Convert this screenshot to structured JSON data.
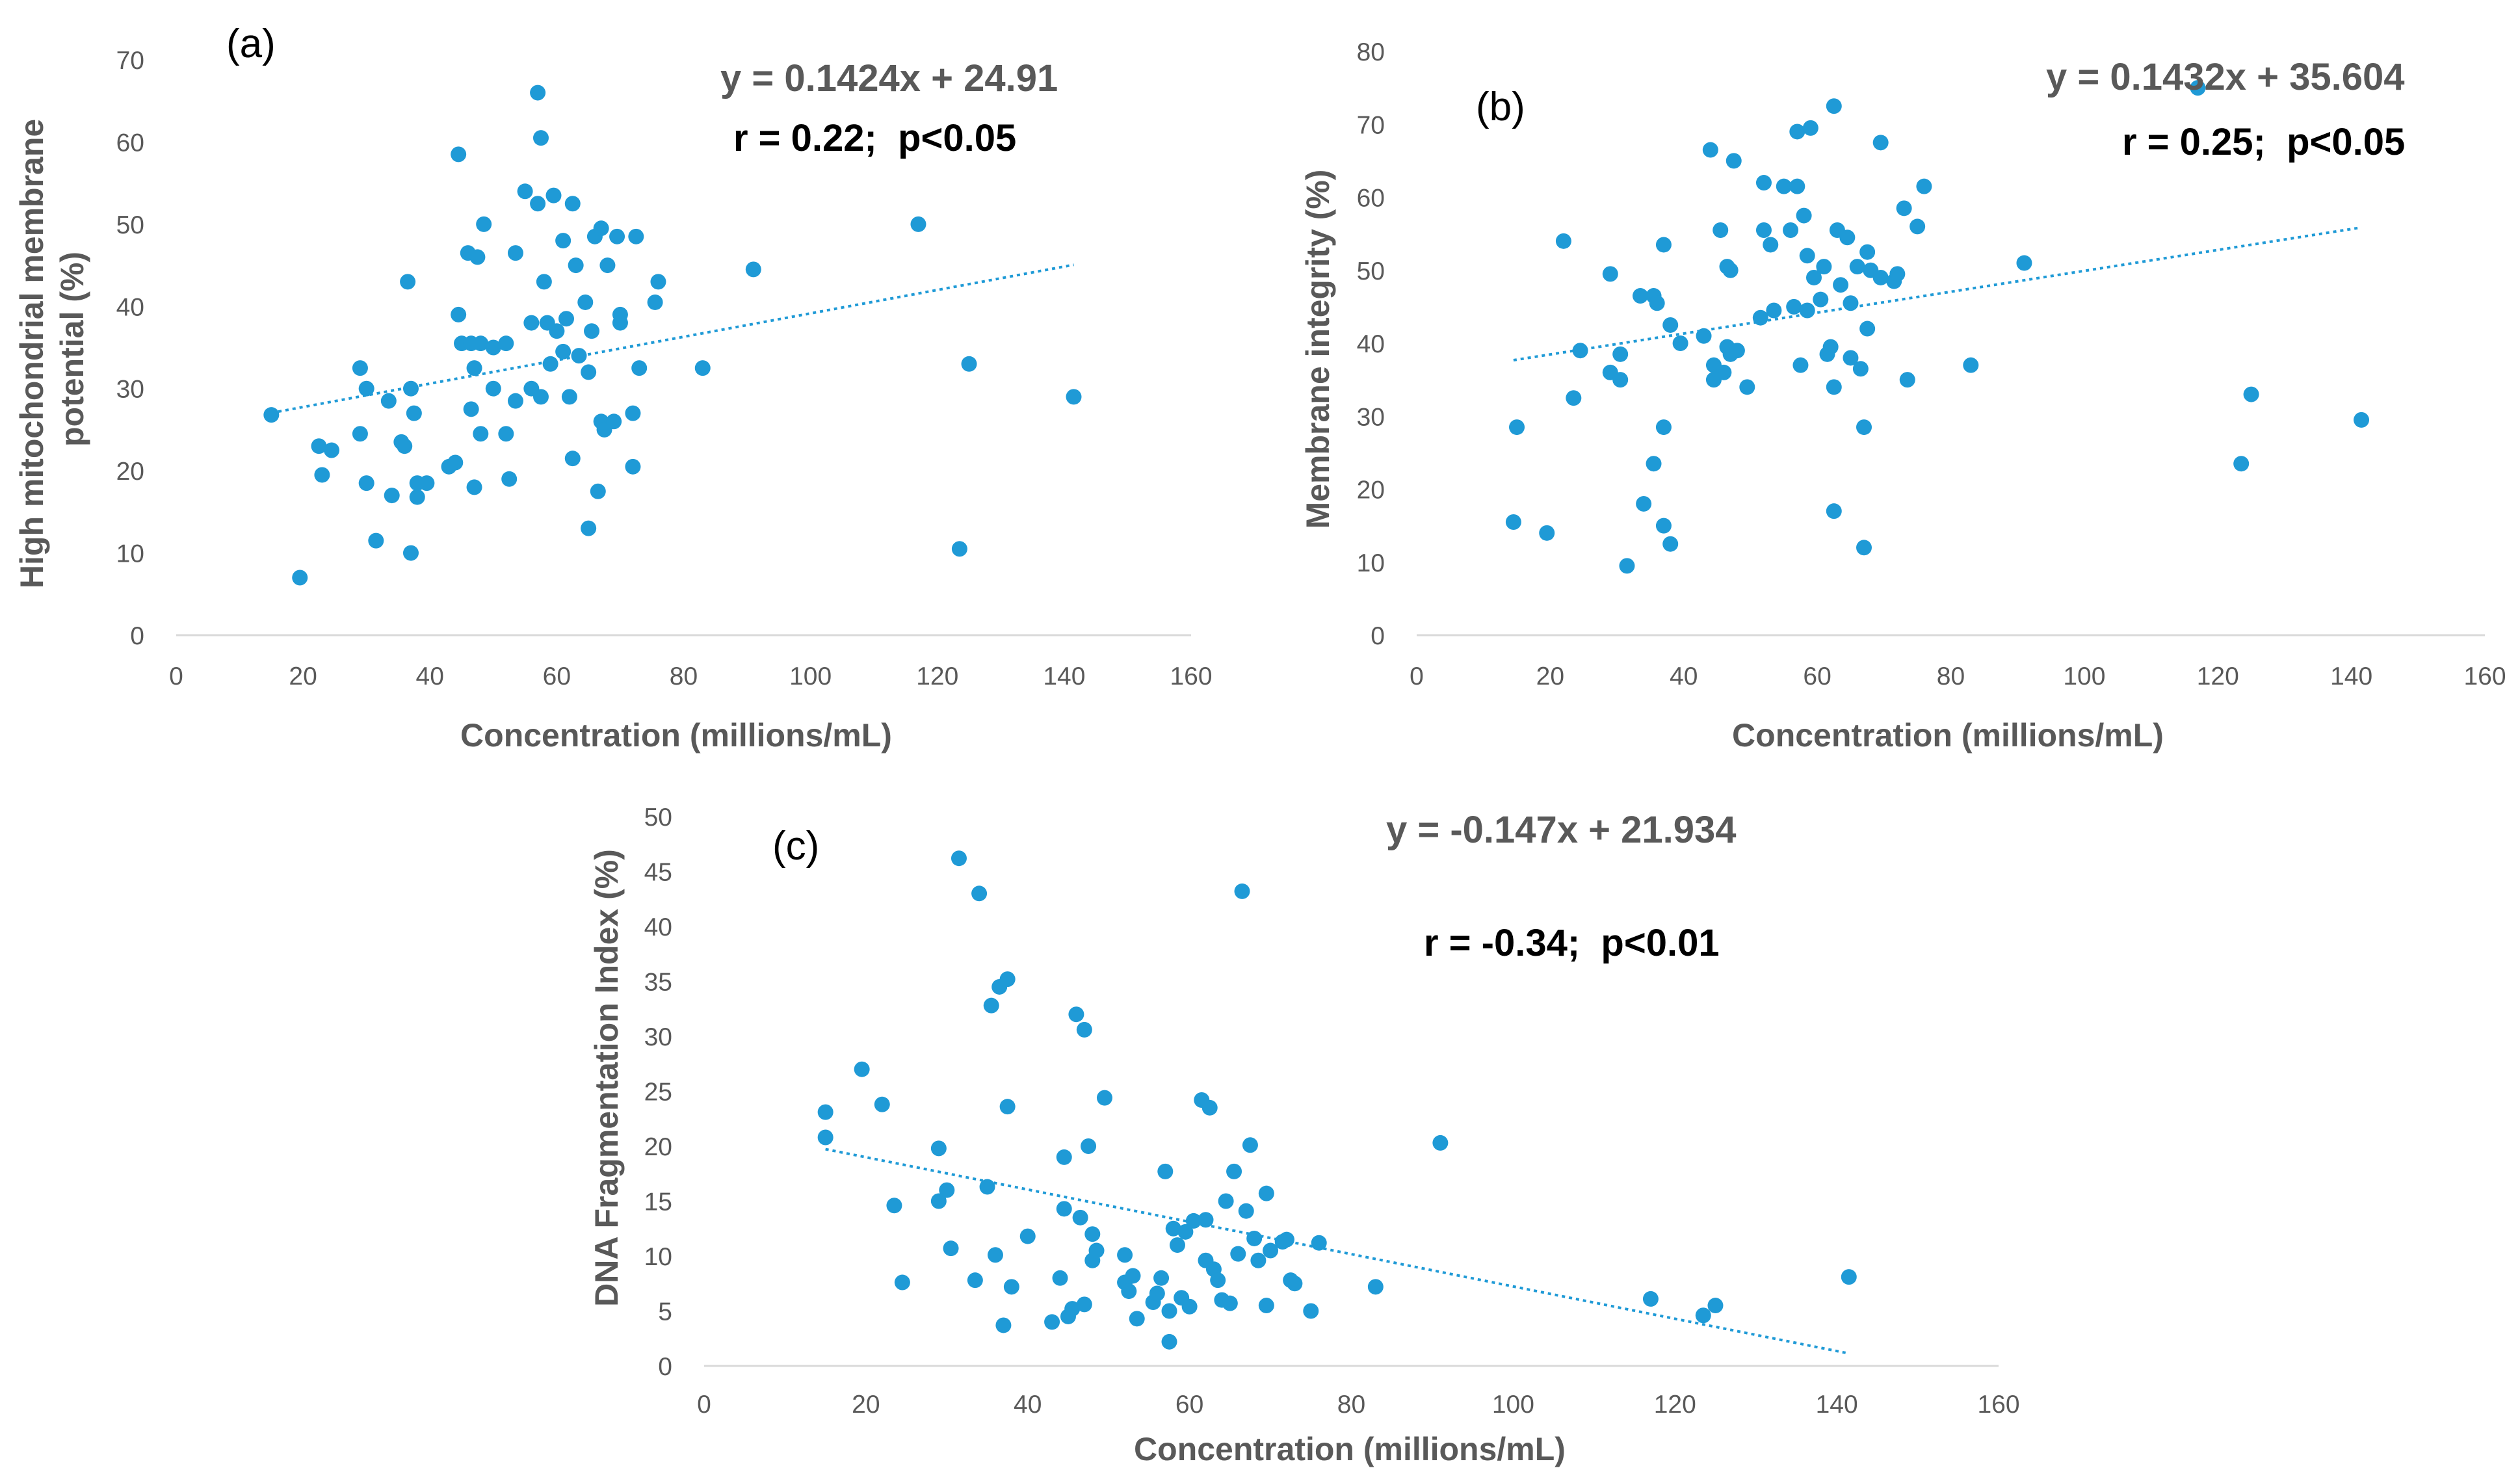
{
  "chart_data": [
    {
      "type": "scatter",
      "panel_label": "(a)",
      "equation": "y = 0.1424x + 24.91",
      "stats": "r = 0.22;  p<0.05",
      "xlabel": "Concentration (millions/mL)",
      "ylabel": "High mitochondrial membrane potential (%)",
      "ylabel_lines": [
        "High mitochondrial membrane",
        "potential (%)"
      ],
      "xlim": [
        0,
        160
      ],
      "ylim": [
        0,
        70
      ],
      "xticks": [
        0,
        20,
        40,
        60,
        80,
        100,
        120,
        140,
        160
      ],
      "yticks": [
        0,
        10,
        20,
        30,
        40,
        50,
        60,
        70
      ],
      "trendline": {
        "slope": 0.1424,
        "intercept": 24.91,
        "x_range": [
          15,
          141.5
        ]
      },
      "marker_color": "#1f9ad6",
      "points": [
        [
          15,
          26.8
        ],
        [
          19.5,
          7
        ],
        [
          22.5,
          23
        ],
        [
          23,
          19.5
        ],
        [
          24.5,
          22.5
        ],
        [
          29,
          24.5
        ],
        [
          29,
          32.5
        ],
        [
          30,
          30
        ],
        [
          30,
          18.5
        ],
        [
          31.5,
          11.5
        ],
        [
          33.5,
          28.5
        ],
        [
          34,
          17
        ],
        [
          35.5,
          23.5
        ],
        [
          36,
          23
        ],
        [
          36.5,
          43
        ],
        [
          37,
          30
        ],
        [
          37,
          10
        ],
        [
          37.5,
          27
        ],
        [
          38,
          16.8
        ],
        [
          38,
          18.5
        ],
        [
          39.5,
          18.5
        ],
        [
          43,
          20.5
        ],
        [
          44,
          21
        ],
        [
          44.5,
          58.5
        ],
        [
          44.5,
          39
        ],
        [
          45,
          35.5
        ],
        [
          46,
          46.5
        ],
        [
          46.5,
          35.5
        ],
        [
          46.5,
          27.5
        ],
        [
          47,
          32.5
        ],
        [
          47,
          18
        ],
        [
          47.5,
          46
        ],
        [
          48,
          35.5
        ],
        [
          48,
          24.5
        ],
        [
          48.5,
          50
        ],
        [
          50,
          35
        ],
        [
          50,
          30
        ],
        [
          52,
          35.5
        ],
        [
          52,
          24.5
        ],
        [
          52.5,
          19
        ],
        [
          53.5,
          46.5
        ],
        [
          53.5,
          28.5
        ],
        [
          55,
          54
        ],
        [
          56,
          38
        ],
        [
          56,
          30
        ],
        [
          57,
          66
        ],
        [
          57,
          52.5
        ],
        [
          57.5,
          29
        ],
        [
          57.5,
          60.5
        ],
        [
          58,
          43
        ],
        [
          58.5,
          38
        ],
        [
          59,
          33
        ],
        [
          59.5,
          53.5
        ],
        [
          60,
          37
        ],
        [
          61,
          34.5
        ],
        [
          61,
          48
        ],
        [
          61.5,
          38.5
        ],
        [
          62,
          29
        ],
        [
          62.5,
          21.5
        ],
        [
          62.5,
          52.5
        ],
        [
          63,
          45
        ],
        [
          63.5,
          34
        ],
        [
          64.5,
          40.5
        ],
        [
          65,
          13
        ],
        [
          65,
          32
        ],
        [
          65.5,
          37
        ],
        [
          66,
          48.5
        ],
        [
          66.5,
          17.5
        ],
        [
          67,
          26
        ],
        [
          67,
          49.5
        ],
        [
          67.5,
          25
        ],
        [
          68,
          45
        ],
        [
          69,
          26
        ],
        [
          69.5,
          48.5
        ],
        [
          70,
          39
        ],
        [
          70,
          38
        ],
        [
          72,
          20.5
        ],
        [
          72,
          27
        ],
        [
          72.5,
          48.5
        ],
        [
          73,
          32.5
        ],
        [
          75.5,
          40.5
        ],
        [
          76,
          43
        ],
        [
          83,
          32.5
        ],
        [
          91,
          44.5
        ],
        [
          117,
          50
        ],
        [
          123.5,
          10.5
        ],
        [
          125,
          33
        ],
        [
          141.5,
          29
        ]
      ]
    },
    {
      "type": "scatter",
      "panel_label": "(b)",
      "equation": "y = 0.1432x + 35.604",
      "stats": "r = 0.25;  p<0.05",
      "xlabel": "Concentration (millions/mL)",
      "ylabel": "Membrane integrity (%)",
      "ylabel_lines": [
        "Membrane integrity (%)"
      ],
      "xlim": [
        0,
        160
      ],
      "ylim": [
        0,
        80
      ],
      "xticks": [
        0,
        20,
        40,
        60,
        80,
        100,
        120,
        140,
        160
      ],
      "yticks": [
        0,
        10,
        20,
        30,
        40,
        50,
        60,
        70,
        80
      ],
      "trendline": {
        "slope": 0.1432,
        "intercept": 35.604,
        "x_range": [
          14.5,
          141.5
        ]
      },
      "marker_color": "#1f9ad6",
      "points": [
        [
          14.5,
          15.5
        ],
        [
          15,
          28.5
        ],
        [
          19.5,
          14
        ],
        [
          22,
          54
        ],
        [
          23.5,
          32.5
        ],
        [
          24.5,
          39
        ],
        [
          29,
          49.5
        ],
        [
          29,
          36
        ],
        [
          30.5,
          35
        ],
        [
          30.5,
          38.5
        ],
        [
          31.5,
          9.5
        ],
        [
          33.5,
          46.5
        ],
        [
          34,
          18
        ],
        [
          35.5,
          23.5
        ],
        [
          35.5,
          46.5
        ],
        [
          36,
          45.5
        ],
        [
          37,
          15
        ],
        [
          37,
          53.5
        ],
        [
          37,
          28.5
        ],
        [
          38,
          12.5
        ],
        [
          38,
          42.5
        ],
        [
          39.5,
          40
        ],
        [
          43,
          41
        ],
        [
          44,
          66.5
        ],
        [
          44.5,
          35
        ],
        [
          44.5,
          37
        ],
        [
          45.5,
          55.5
        ],
        [
          46,
          36
        ],
        [
          46.5,
          50.5
        ],
        [
          46.5,
          39.5
        ],
        [
          47,
          50
        ],
        [
          47,
          38.5
        ],
        [
          47.5,
          65
        ],
        [
          48,
          39
        ],
        [
          49.5,
          34
        ],
        [
          51.5,
          43.5
        ],
        [
          52,
          55.5
        ],
        [
          52,
          62
        ],
        [
          53,
          53.5
        ],
        [
          53.5,
          44.5
        ],
        [
          55,
          61.5
        ],
        [
          56,
          55.5
        ],
        [
          56.5,
          45
        ],
        [
          57,
          69
        ],
        [
          57,
          61.5
        ],
        [
          57.5,
          37
        ],
        [
          58,
          57.5
        ],
        [
          58.5,
          52
        ],
        [
          58.5,
          44.5
        ],
        [
          59,
          69.5
        ],
        [
          59.5,
          49
        ],
        [
          60.5,
          46
        ],
        [
          61,
          50.5
        ],
        [
          61.5,
          38.5
        ],
        [
          62,
          39.5
        ],
        [
          62.5,
          34
        ],
        [
          62.5,
          17
        ],
        [
          62.5,
          72.5
        ],
        [
          63,
          55.5
        ],
        [
          63.5,
          48
        ],
        [
          64.5,
          54.5
        ],
        [
          65,
          45.5
        ],
        [
          65,
          38
        ],
        [
          66,
          50.5
        ],
        [
          66.5,
          36.5
        ],
        [
          67,
          12
        ],
        [
          67,
          28.5
        ],
        [
          67.5,
          42
        ],
        [
          67.5,
          52.5
        ],
        [
          68,
          50
        ],
        [
          69.5,
          67.5
        ],
        [
          69.5,
          49
        ],
        [
          71.5,
          48.5
        ],
        [
          72,
          49.5
        ],
        [
          73,
          58.5
        ],
        [
          73.5,
          35
        ],
        [
          75,
          56
        ],
        [
          76,
          61.5
        ],
        [
          83,
          37
        ],
        [
          91,
          51
        ],
        [
          117,
          75
        ],
        [
          123.5,
          23.5
        ],
        [
          125,
          33
        ],
        [
          141.5,
          29.5
        ]
      ]
    },
    {
      "type": "scatter",
      "panel_label": "(c)",
      "equation": "y = -0.147x + 21.934",
      "stats": "r = -0.34;  p<0.01",
      "xlabel": "Concentration (millions/mL)",
      "ylabel": "DNA Fragmentation Index (%)",
      "ylabel_lines": [
        "DNA Fragmentation Index (%)"
      ],
      "xlim": [
        0,
        160
      ],
      "ylim": [
        0,
        50
      ],
      "xticks": [
        0,
        20,
        40,
        60,
        80,
        100,
        120,
        140,
        160
      ],
      "yticks": [
        0,
        5,
        10,
        15,
        20,
        25,
        30,
        35,
        40,
        45,
        50
      ],
      "trendline": {
        "slope": -0.147,
        "intercept": 21.934,
        "x_range": [
          15,
          141.5
        ]
      },
      "marker_color": "#1f9ad6",
      "points": [
        [
          15,
          20.8
        ],
        [
          15,
          23.1
        ],
        [
          19.5,
          27
        ],
        [
          22,
          23.8
        ],
        [
          23.5,
          14.6
        ],
        [
          24.5,
          7.6
        ],
        [
          29,
          19.8
        ],
        [
          29,
          15
        ],
        [
          30,
          16
        ],
        [
          30.5,
          10.7
        ],
        [
          31.5,
          46.2
        ],
        [
          33.5,
          7.8
        ],
        [
          34,
          43
        ],
        [
          35,
          16.3
        ],
        [
          35.5,
          32.8
        ],
        [
          36,
          10.1
        ],
        [
          36.5,
          34.5
        ],
        [
          37,
          3.7
        ],
        [
          37.5,
          23.6
        ],
        [
          37.5,
          35.2
        ],
        [
          38,
          7.2
        ],
        [
          40,
          11.8
        ],
        [
          43,
          4
        ],
        [
          44,
          8
        ],
        [
          44.5,
          19
        ],
        [
          44.5,
          14.3
        ],
        [
          45,
          4.5
        ],
        [
          45.5,
          5.2
        ],
        [
          46,
          32
        ],
        [
          46.5,
          13.5
        ],
        [
          47,
          30.6
        ],
        [
          47,
          5.6
        ],
        [
          47.5,
          20
        ],
        [
          48,
          9.6
        ],
        [
          48,
          12
        ],
        [
          48.5,
          10.5
        ],
        [
          49.5,
          24.4
        ],
        [
          52,
          10.1
        ],
        [
          52,
          7.6
        ],
        [
          52.5,
          6.8
        ],
        [
          53,
          8.2
        ],
        [
          53.5,
          4.3
        ],
        [
          55.5,
          5.8
        ],
        [
          56,
          6.6
        ],
        [
          56.5,
          8
        ],
        [
          57,
          17.7
        ],
        [
          57.5,
          5
        ],
        [
          57.5,
          2.2
        ],
        [
          58,
          12.5
        ],
        [
          58.5,
          11
        ],
        [
          59,
          6.2
        ],
        [
          59.5,
          12.2
        ],
        [
          60,
          5.4
        ],
        [
          60.5,
          13.2
        ],
        [
          61.5,
          24.2
        ],
        [
          62,
          13.3
        ],
        [
          62,
          9.6
        ],
        [
          62.5,
          23.5
        ],
        [
          63,
          8.8
        ],
        [
          63.5,
          7.8
        ],
        [
          64,
          6
        ],
        [
          64.5,
          15
        ],
        [
          65,
          5.7
        ],
        [
          65.5,
          17.7
        ],
        [
          66,
          10.2
        ],
        [
          66.5,
          43.2
        ],
        [
          67,
          14.1
        ],
        [
          67.5,
          20.1
        ],
        [
          68,
          11.6
        ],
        [
          68.5,
          9.6
        ],
        [
          69.5,
          15.7
        ],
        [
          69.5,
          5.5
        ],
        [
          70,
          10.5
        ],
        [
          71.5,
          11.3
        ],
        [
          72,
          11.5
        ],
        [
          72.5,
          7.8
        ],
        [
          73,
          7.5
        ],
        [
          75,
          5
        ],
        [
          76,
          11.2
        ],
        [
          83,
          7.2
        ],
        [
          91,
          20.3
        ],
        [
          117,
          6.1
        ],
        [
          123.5,
          4.6
        ],
        [
          125,
          5.5
        ],
        [
          141.5,
          8.1
        ]
      ]
    }
  ]
}
